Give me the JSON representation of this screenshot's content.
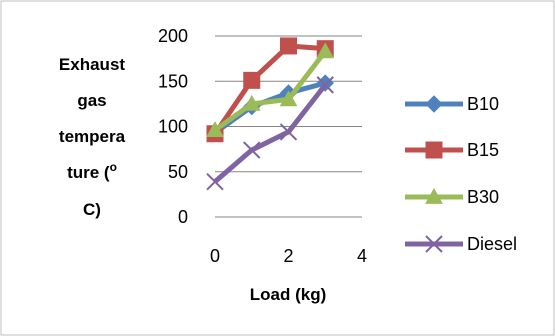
{
  "chart_data": {
    "type": "line",
    "title": "",
    "ylabel_lines": [
      "Exhaust",
      "gas",
      "tempera",
      "ture (",
      "C)"
    ],
    "ylabel_superscript": "o",
    "xlabel": "Load (kg)",
    "xlim": [
      0,
      4
    ],
    "ylim": [
      0,
      200
    ],
    "x_ticks": [
      "0",
      "2",
      "4"
    ],
    "y_ticks": [
      "0",
      "50",
      "100",
      "150",
      "200"
    ],
    "grid": "horizontal",
    "legend_position": "right",
    "series": [
      {
        "name": "B10",
        "color": "#4f81bd",
        "marker": "diamond",
        "x": [
          0,
          1,
          2,
          3
        ],
        "y": [
          93,
          122,
          137,
          148
        ]
      },
      {
        "name": "B15",
        "color": "#c0504d",
        "marker": "square",
        "x": [
          0,
          1,
          2,
          3
        ],
        "y": [
          92,
          151,
          189,
          186
        ]
      },
      {
        "name": "B30",
        "color": "#9bbb59",
        "marker": "triangle",
        "x": [
          0,
          1,
          2,
          3
        ],
        "y": [
          96,
          125,
          130,
          183
        ]
      },
      {
        "name": "Diesel",
        "color": "#8064a2",
        "marker": "x",
        "x": [
          0,
          1,
          2,
          3
        ],
        "y": [
          39,
          74,
          94,
          146
        ]
      }
    ]
  }
}
